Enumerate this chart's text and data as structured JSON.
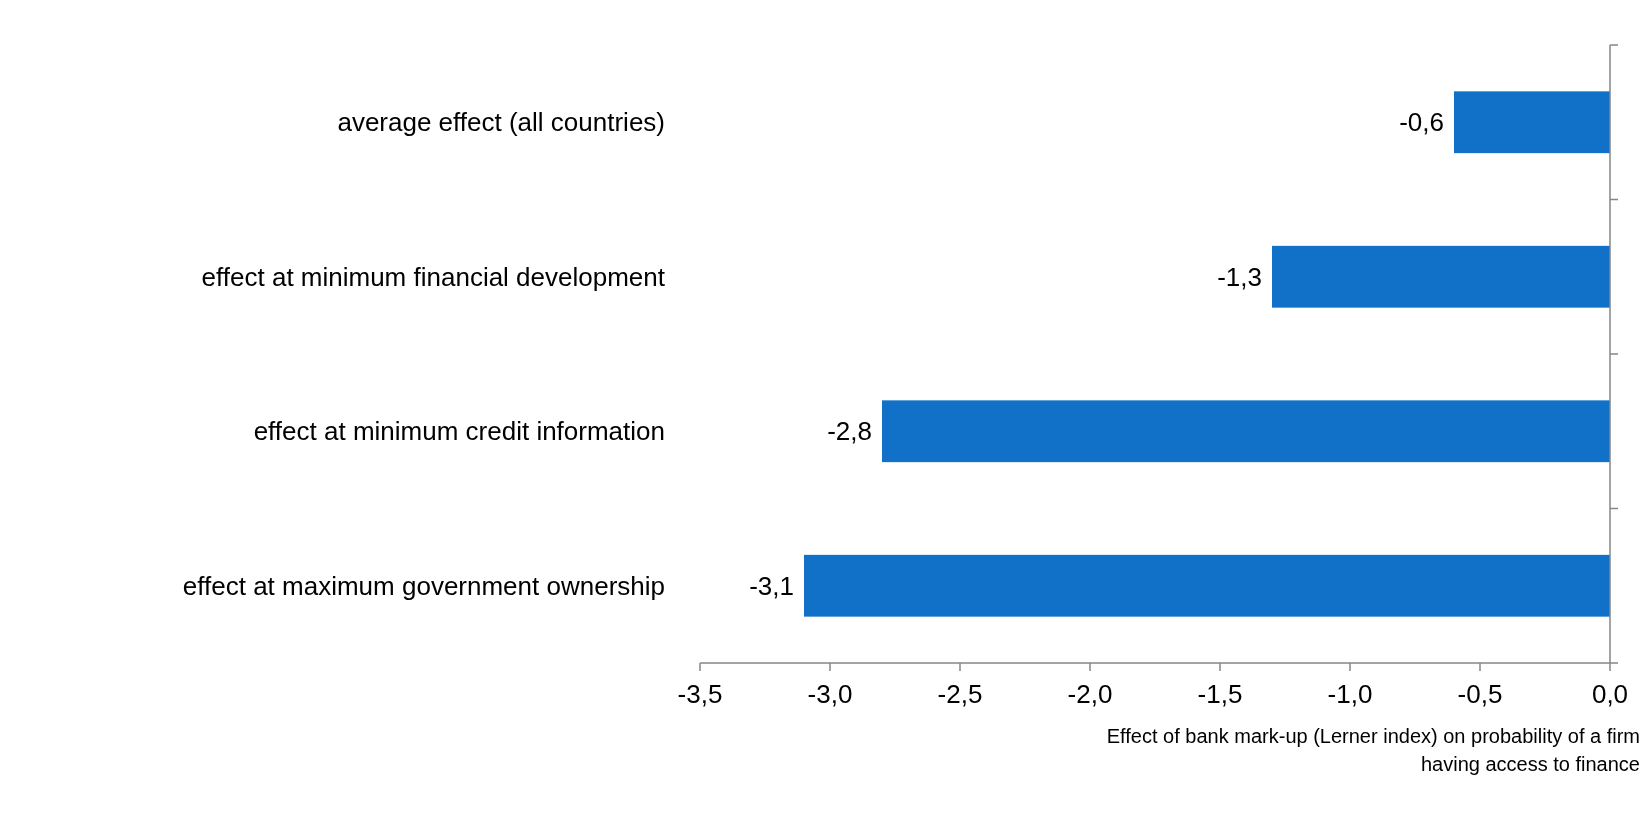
{
  "chart_data": {
    "type": "bar",
    "orientation": "horizontal",
    "xlabel": "Effect of bank mark-up (Lerner index) on probability of a firm having access to finance",
    "categories": [
      "average effect (all countries)",
      "effect at minimum financial development",
      "effect at minimum credit information",
      "effect at maximum government ownership"
    ],
    "values": [
      -0.6,
      -1.3,
      -2.8,
      -3.1
    ],
    "value_labels": [
      "-0,6",
      "-1,3",
      "-2,8",
      "-3,1"
    ],
    "color": "#1170c7",
    "xlim": [
      -3.5,
      0
    ],
    "xticks": [
      {
        "value": -3.5,
        "label": "-3,5"
      },
      {
        "value": -3.0,
        "label": "-3,0"
      },
      {
        "value": -2.5,
        "label": "-2,5"
      },
      {
        "value": -2.0,
        "label": "-2,0"
      },
      {
        "value": -1.5,
        "label": "-1,5"
      },
      {
        "value": -1.0,
        "label": "-1,0"
      },
      {
        "value": -0.5,
        "label": "-0,5"
      },
      {
        "value": 0.0,
        "label": "0,0"
      }
    ]
  }
}
